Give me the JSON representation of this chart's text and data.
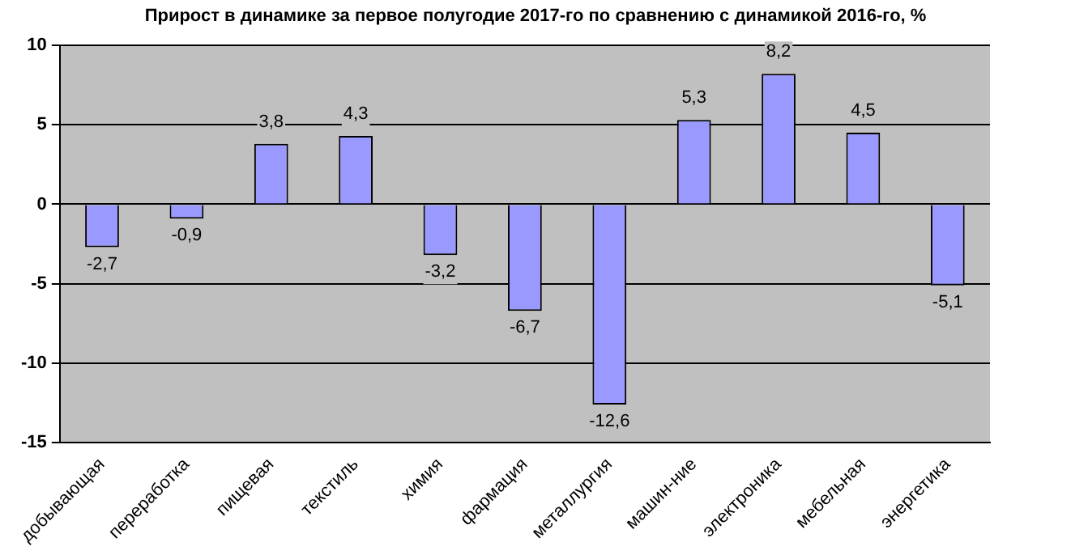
{
  "chart_data": {
    "type": "bar",
    "title": "Прирост в динамике за первое полугодие 2017-го по сравнению с динамикой 2016-го, %",
    "categories": [
      "добывающая",
      "переработка",
      "пищевая",
      "текстиль",
      "химия",
      "фармация",
      "металлургия",
      "машин-ние",
      "электроника",
      "мебельная",
      "энергетика"
    ],
    "values": [
      -2.7,
      -0.9,
      3.8,
      4.3,
      -3.2,
      -6.7,
      -12.6,
      5.3,
      8.2,
      4.5,
      -5.1
    ],
    "value_labels": [
      "-2,7",
      "-0,9",
      "3,8",
      "4,3",
      "-3,2",
      "-6,7",
      "-12,6",
      "5,3",
      "8,2",
      "4,5",
      "-5,1"
    ],
    "color": "#9999ff",
    "ylim": [
      -15,
      10
    ],
    "yticks": [
      -15,
      -10,
      -5,
      0,
      5,
      10
    ],
    "grid": "y",
    "legend": false
  }
}
